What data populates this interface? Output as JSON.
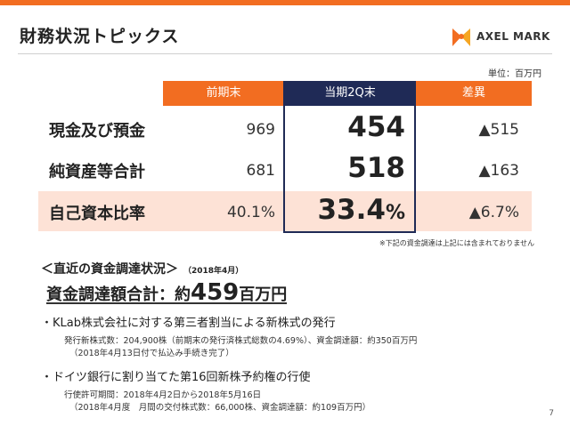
{
  "header": {
    "title": "財務状況トピックス",
    "logo_text": "AXEL MARK"
  },
  "table": {
    "unit": "単位：百万円",
    "columns": [
      "前期末",
      "当期2Q末",
      "差異"
    ],
    "rows": [
      {
        "label": "現金及び預金",
        "prev": "969",
        "current": "454",
        "current_unit": "",
        "diff": "▲515"
      },
      {
        "label": "純資産等合計",
        "prev": "681",
        "current": "518",
        "current_unit": "",
        "diff": "▲163"
      },
      {
        "label": "自己資本比率",
        "prev": "40.1%",
        "current": "33.4",
        "current_unit": "%",
        "diff": "▲6.7%"
      }
    ],
    "footnote": "※下記の資金調達は上記には含まれておりません"
  },
  "funding": {
    "heading": "＜直近の資金調達状況＞",
    "heading_date": "（2018年4月）",
    "total_prefix": "資金調達額合計：約",
    "total_value": "459",
    "total_suffix": "百万円",
    "items": [
      {
        "title": "・KLab株式会社に対する第三者割当による新株式の発行",
        "details": [
          "発行新株式数：204,900株（前期末の発行済株式総数の4.69%）、資金調達額：約350百万円",
          "（2018年4月13日付で払込み手続き完了）"
        ]
      },
      {
        "title": "・ドイツ銀行に割り当てた第16回新株予約権の行使",
        "details": [
          "行使許可期間：2018年4月2日から2018年5月16日",
          "（2018年4月度　月間の交付株式数：66,000株、資金調達額：約109百万円）"
        ]
      }
    ]
  },
  "page_number": "7",
  "colors": {
    "accent": "#f26d21",
    "navy": "#1f2a56",
    "highlight_row": "#fde2d6"
  }
}
